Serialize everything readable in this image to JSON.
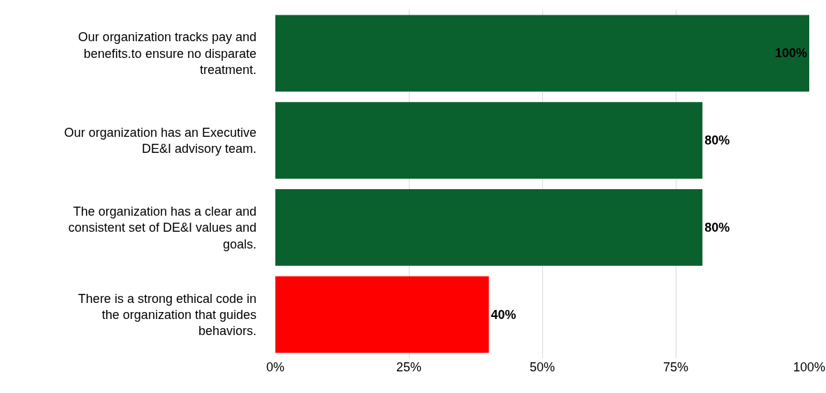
{
  "chart_data": {
    "type": "bar",
    "orientation": "horizontal",
    "categories": [
      "Our organization tracks pay and benefits.to ensure no disparate treatment.",
      "Our organization has an Executive DE&I advisory team.",
      "The organization has a clear and consistent set of DE&I values and goals.",
      "There is a strong ethical code in the organization that guides behaviors."
    ],
    "values": [
      100,
      80,
      80,
      40
    ],
    "colors": [
      "#0b612e",
      "#0b612e",
      "#0b612e",
      "#ff0000"
    ],
    "value_labels": [
      "100%",
      "80%",
      "80%",
      "40%"
    ],
    "xlim": [
      0,
      100
    ],
    "xticks": [
      {
        "value": 0,
        "label": "0%"
      },
      {
        "value": 25,
        "label": "25%"
      },
      {
        "value": 50,
        "label": "50%"
      },
      {
        "value": 75,
        "label": "75%"
      },
      {
        "value": 100,
        "label": "100%"
      }
    ],
    "grid": "x"
  }
}
